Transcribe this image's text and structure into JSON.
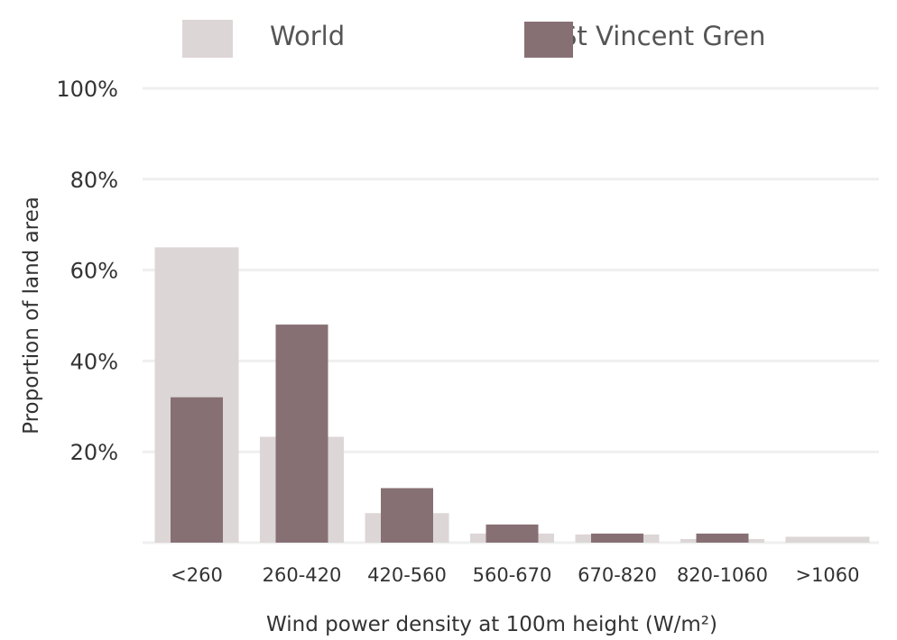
{
  "chart_data": {
    "type": "bar",
    "title": "",
    "xlabel": "Wind power density at 100m height (W/m²)",
    "ylabel": "Proportion of land area",
    "categories": [
      "<260",
      "260-420",
      "420-560",
      "560-670",
      "670-820",
      "820-1060",
      ">1060"
    ],
    "series": [
      {
        "name": "World",
        "color": "#ddd6d6",
        "values": [
          65,
          23.3,
          6.5,
          2,
          1.8,
          0.8,
          1.3
        ]
      },
      {
        "name": "St Vincent Gren",
        "color": "#877074",
        "values": [
          32,
          48,
          12,
          4,
          2,
          2,
          0
        ]
      }
    ],
    "ylim": [
      0,
      100
    ],
    "yticks": [
      {
        "value": 20,
        "label": "20%"
      },
      {
        "value": 40,
        "label": "40%"
      },
      {
        "value": 60,
        "label": "60%"
      },
      {
        "value": 80,
        "label": "80%"
      },
      {
        "value": 100,
        "label": "100%"
      }
    ],
    "grid": true,
    "legend": "top",
    "gridline_color": "#efefef"
  }
}
